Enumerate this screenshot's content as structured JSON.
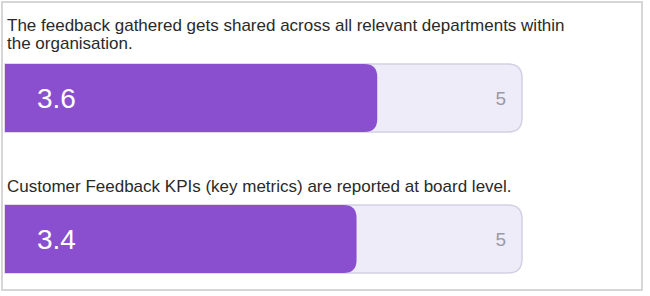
{
  "chart_data": {
    "type": "bar",
    "orientation": "horizontal",
    "categories": [
      "The feedback gathered gets shared across all relevant departments within the organisation.",
      "Customer Feedback KPIs (key metrics) are reported at board level."
    ],
    "values": [
      3.6,
      3.4
    ],
    "color": "#8a4fcf",
    "xlim": [
      0,
      5
    ],
    "xticks": [
      5
    ],
    "data_labels": true
  }
}
